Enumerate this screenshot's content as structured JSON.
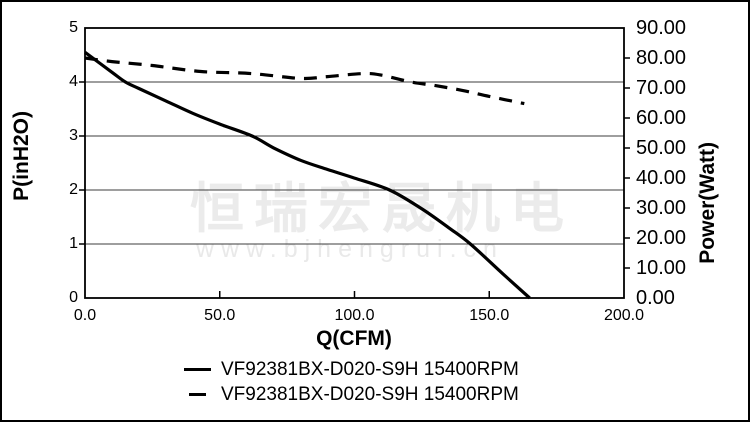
{
  "watermark": {
    "company": "恒瑞宏晟机电",
    "website": "www.bjhengrui.cn"
  },
  "colors": {
    "curve": "#000000",
    "grid": "#3c3c3c",
    "axis": "#000000",
    "watermark": "#ebebeb",
    "background": "#ffffff",
    "frame": "#000000"
  },
  "chart_data": {
    "type": "line",
    "title": "",
    "xlabel": "Q(CFM)",
    "ylabel_left": "P(inH2O)",
    "ylabel_right": "Power(Watt)",
    "xlim": [
      0,
      200
    ],
    "ylim_left": [
      0,
      5
    ],
    "ylim_right": [
      0,
      90
    ],
    "x_ticks": [
      "0.0",
      "50.0",
      "100.0",
      "150.0",
      "200.0"
    ],
    "y_ticks_left": [
      "0",
      "1",
      "2",
      "3",
      "4",
      "5"
    ],
    "y_ticks_right": [
      "0.00",
      "10.00",
      "20.00",
      "30.00",
      "40.00",
      "50.00",
      "60.00",
      "70.00",
      "80.00",
      "90.00"
    ],
    "grid": "horizontal",
    "legend_position": "bottom",
    "series": [
      {
        "name": "VF92381BX-D020-S9H 15400RPM",
        "axis": "left",
        "style": "solid",
        "unit": "inH2O",
        "x": [
          0,
          10,
          15,
          20,
          30,
          40,
          50,
          62,
          70,
          80,
          90,
          100,
          113,
          125,
          135,
          143,
          155,
          165
        ],
        "y": [
          4.55,
          4.18,
          4.0,
          3.88,
          3.65,
          3.42,
          3.22,
          3.0,
          2.78,
          2.55,
          2.38,
          2.22,
          2.0,
          1.65,
          1.3,
          1.0,
          0.45,
          0.0
        ]
      },
      {
        "name": "VF92381BX-D020-S9H 15400RPM",
        "axis": "right",
        "style": "dashed",
        "unit": "Watt",
        "x": [
          0,
          10,
          25,
          43,
          62,
          80,
          90,
          103,
          110,
          121,
          130,
          140,
          150,
          163
        ],
        "y": [
          80.0,
          78.8,
          77.5,
          75.5,
          74.8,
          73.2,
          73.8,
          74.8,
          74.3,
          72.0,
          70.8,
          69.2,
          67.2,
          64.8
        ]
      }
    ]
  }
}
